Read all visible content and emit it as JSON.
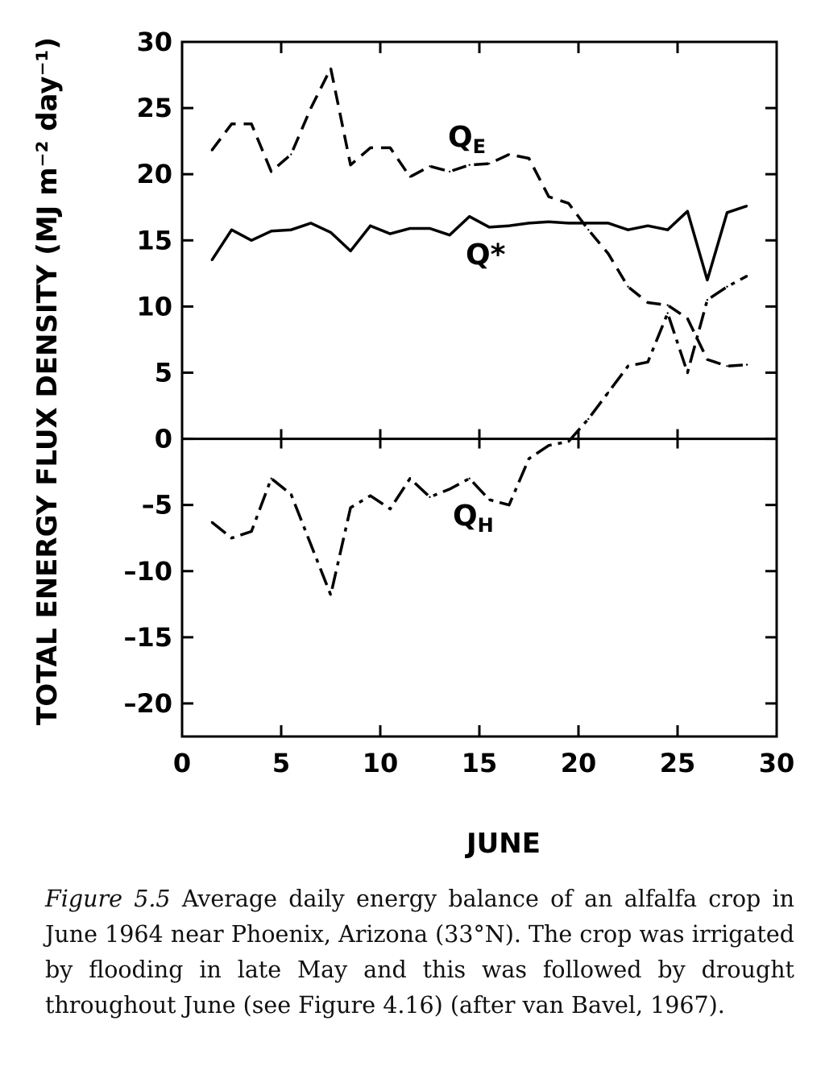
{
  "chart_data": {
    "type": "line",
    "xlabel": "JUNE",
    "ylabel": "TOTAL ENERGY FLUX DENSITY (MJ m⁻² day⁻¹)",
    "xlim": [
      0,
      30
    ],
    "ylim": [
      -22.5,
      30
    ],
    "x_ticks": [
      0,
      5,
      10,
      15,
      20,
      25,
      30
    ],
    "y_ticks": [
      30,
      25,
      20,
      15,
      10,
      5,
      0,
      -5,
      -10,
      -15,
      -20
    ],
    "x_tick_labels": [
      "0",
      "5",
      "10",
      "15",
      "20",
      "25",
      "30"
    ],
    "y_tick_labels": [
      "30",
      "25",
      "20",
      "15",
      "10",
      "5",
      "0",
      "–5",
      "–10",
      "–15",
      "–20"
    ],
    "grid": false,
    "series": [
      {
        "name": "QE",
        "name_main": "Q",
        "name_sub": "E",
        "style": "dashed",
        "x": [
          1.5,
          2.5,
          3.5,
          4.5,
          5.5,
          6.5,
          7.5,
          8.5,
          9.5,
          10.5,
          11.5,
          12.5,
          13.5,
          14.5,
          15.5,
          16.5,
          17.5,
          18.5,
          19.5,
          20.5,
          21.5,
          22.5,
          23.5,
          24.5,
          25.5,
          26.5,
          27.5,
          28.5
        ],
        "values": [
          21.8,
          23.8,
          23.8,
          20.2,
          21.5,
          25.0,
          28.0,
          20.7,
          22.0,
          22.0,
          19.8,
          20.6,
          20.2,
          20.7,
          20.8,
          21.5,
          21.2,
          18.3,
          17.8,
          15.8,
          14.0,
          11.5,
          10.3,
          10.1,
          9.1,
          6.0,
          5.5,
          5.6
        ]
      },
      {
        "name": "Q*",
        "style": "solid",
        "x": [
          1.5,
          2.5,
          3.5,
          4.5,
          5.5,
          6.5,
          7.5,
          8.5,
          9.5,
          10.5,
          11.5,
          12.5,
          13.5,
          14.5,
          15.5,
          16.5,
          17.5,
          18.5,
          19.5,
          20.5,
          21.5,
          22.5,
          23.5,
          24.5,
          25.5,
          26.5,
          27.5,
          28.5
        ],
        "values": [
          13.5,
          15.8,
          15.0,
          15.7,
          15.8,
          16.3,
          15.6,
          14.2,
          16.1,
          15.5,
          15.9,
          15.9,
          15.4,
          16.8,
          16.0,
          16.1,
          16.3,
          16.4,
          16.3,
          16.3,
          16.3,
          15.8,
          16.1,
          15.8,
          17.2,
          12.0,
          17.1,
          17.6
        ]
      },
      {
        "name": "QH",
        "name_main": "Q",
        "name_sub": "H",
        "style": "dash-dot",
        "x": [
          1.5,
          2.5,
          3.5,
          4.5,
          5.5,
          6.5,
          7.5,
          8.5,
          9.5,
          10.5,
          11.5,
          12.5,
          13.5,
          14.5,
          15.5,
          16.5,
          17.5,
          18.5,
          19.5,
          20.5,
          21.5,
          22.5,
          23.5,
          24.5,
          25.5,
          26.5,
          27.5,
          28.5
        ],
        "values": [
          -6.3,
          -7.5,
          -7.0,
          -3.0,
          -4.2,
          -8.0,
          -11.8,
          -5.2,
          -4.3,
          -5.3,
          -3.0,
          -4.4,
          -3.8,
          -3.0,
          -4.6,
          -5.0,
          -1.5,
          -0.5,
          -0.2,
          1.5,
          3.5,
          5.5,
          5.8,
          9.5,
          5.0,
          10.5,
          11.5,
          12.3
        ]
      }
    ]
  },
  "caption": {
    "figure_label": "Figure 5.5",
    "text": " Average daily energy balance of an alfalfa crop in June 1964 near Phoenix, Arizona (33°N). The crop was irrigated by flooding in late May and this was followed by drought throughout June (see Figure 4.16) (after van Bavel, 1967)."
  }
}
